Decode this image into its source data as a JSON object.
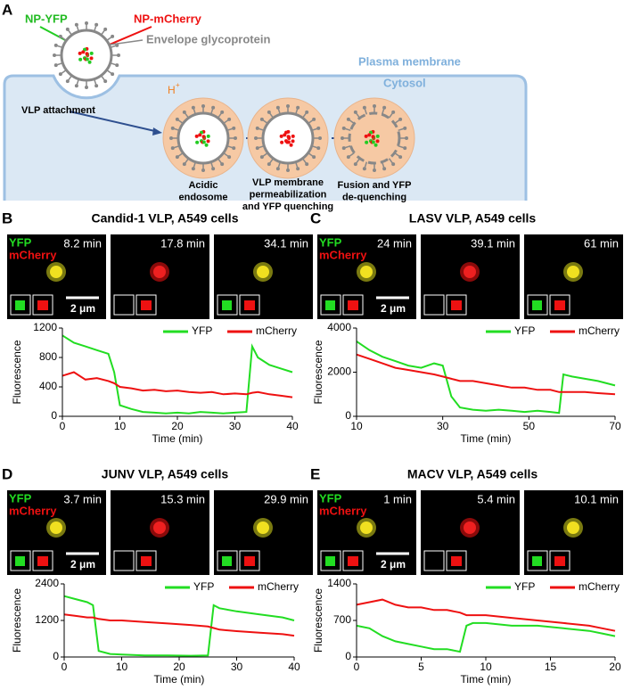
{
  "figure": {
    "panel_label": "A",
    "diagram": {
      "np_yfp": "NP-YFP",
      "np_mcherry": "NP-mCherry",
      "envelope": "Envelope glycoprotein",
      "plasma_membrane": "Plasma membrane",
      "cytosol": "Cytosol",
      "attachment": "VLP attachment",
      "proton": "H",
      "proton_sup": "+",
      "steps": [
        [
          "Acidic",
          "endosome"
        ],
        [
          "VLP membrane",
          "permeabilization",
          "and YFP quenching"
        ],
        [
          "Fusion and YFP",
          "de-quenching"
        ]
      ]
    }
  },
  "chart_data": [
    {
      "type": "line",
      "panel": "B",
      "title": "Candid-1 VLP, A549 cells",
      "image_times": [
        "8.2 min",
        "17.8 min",
        "34.1 min"
      ],
      "channels": [
        "YFP",
        "mCherry"
      ],
      "scale_bar": "2 μm",
      "xlabel": "Time (min)",
      "ylabel": "Fluorescence",
      "legend": "upper right",
      "x": [
        0,
        2,
        4,
        6,
        8,
        9,
        10,
        12,
        14,
        16,
        18,
        20,
        22,
        24,
        26,
        28,
        30,
        32,
        33,
        34,
        36,
        38,
        40
      ],
      "series": [
        {
          "name": "YFP",
          "color": "#22dd22",
          "values": [
            1100,
            1000,
            950,
            900,
            850,
            600,
            150,
            100,
            60,
            50,
            40,
            50,
            40,
            60,
            50,
            40,
            50,
            60,
            950,
            800,
            700,
            650,
            600
          ]
        },
        {
          "name": "mCherry",
          "color": "#ee1111",
          "values": [
            550,
            600,
            500,
            520,
            480,
            450,
            400,
            380,
            350,
            360,
            340,
            350,
            330,
            320,
            330,
            300,
            310,
            300,
            320,
            330,
            300,
            280,
            260
          ]
        }
      ],
      "xlim": [
        0,
        40
      ],
      "xticks": [
        0,
        10,
        20,
        30,
        40
      ],
      "ylim": [
        0,
        1200
      ],
      "yticks": [
        0,
        400,
        800,
        1200
      ]
    },
    {
      "type": "line",
      "panel": "C",
      "title": "LASV VLP, A549 cells",
      "image_times": [
        "24 min",
        "39.1 min",
        "61 min"
      ],
      "channels": [
        "YFP",
        "mCherry"
      ],
      "scale_bar": "2 μm",
      "xlabel": "Time (min)",
      "ylabel": "Fluorescence",
      "legend": "upper right",
      "x": [
        10,
        13,
        16,
        19,
        22,
        25,
        28,
        30,
        32,
        34,
        37,
        40,
        43,
        46,
        49,
        52,
        55,
        57,
        58,
        60,
        63,
        66,
        70
      ],
      "series": [
        {
          "name": "YFP",
          "color": "#22dd22",
          "values": [
            3400,
            3000,
            2700,
            2500,
            2300,
            2200,
            2400,
            2300,
            900,
            400,
            300,
            250,
            300,
            250,
            200,
            250,
            200,
            150,
            1900,
            1800,
            1700,
            1600,
            1400
          ]
        },
        {
          "name": "mCherry",
          "color": "#ee1111",
          "values": [
            2800,
            2600,
            2400,
            2200,
            2100,
            2000,
            1900,
            1800,
            1700,
            1600,
            1600,
            1500,
            1400,
            1300,
            1300,
            1200,
            1200,
            1100,
            1100,
            1100,
            1100,
            1050,
            1000
          ]
        }
      ],
      "xlim": [
        10,
        70
      ],
      "xticks": [
        10,
        30,
        50,
        70
      ],
      "ylim": [
        0,
        4000
      ],
      "yticks": [
        0,
        2000,
        4000
      ]
    },
    {
      "type": "line",
      "panel": "D",
      "title": "JUNV VLP, A549 cells",
      "image_times": [
        "3.7 min",
        "15.3 min",
        "29.9 min"
      ],
      "channels": [
        "YFP",
        "mCherry"
      ],
      "scale_bar": "2 μm",
      "xlabel": "Time (min)",
      "ylabel": "Fluorescence",
      "legend": "upper right",
      "x": [
        0,
        2,
        4,
        5,
        6,
        8,
        10,
        14,
        18,
        22,
        25,
        26,
        27,
        30,
        34,
        38,
        40
      ],
      "series": [
        {
          "name": "YFP",
          "color": "#22dd22",
          "values": [
            2000,
            1900,
            1800,
            1700,
            200,
            100,
            80,
            50,
            50,
            40,
            50,
            1700,
            1600,
            1500,
            1400,
            1300,
            1200
          ]
        },
        {
          "name": "mCherry",
          "color": "#ee1111",
          "values": [
            1400,
            1350,
            1300,
            1300,
            1250,
            1200,
            1200,
            1150,
            1100,
            1050,
            1000,
            950,
            900,
            850,
            800,
            750,
            700
          ]
        }
      ],
      "xlim": [
        0,
        40
      ],
      "xticks": [
        0,
        10,
        20,
        30,
        40
      ],
      "ylim": [
        0,
        2400
      ],
      "yticks": [
        0,
        1200,
        2400
      ]
    },
    {
      "type": "line",
      "panel": "E",
      "title": "MACV VLP, A549 cells",
      "image_times": [
        "1 min",
        "5.4 min",
        "10.1 min"
      ],
      "channels": [
        "YFP",
        "mCherry"
      ],
      "scale_bar": "2 μm",
      "xlabel": "Time (min)",
      "ylabel": "Fluorescence",
      "legend": "upper right",
      "x": [
        0,
        1,
        2,
        3,
        4,
        5,
        6,
        7,
        8,
        8.5,
        9,
        10,
        12,
        14,
        16,
        18,
        19,
        20
      ],
      "series": [
        {
          "name": "YFP",
          "color": "#22dd22",
          "values": [
            600,
            550,
            400,
            300,
            250,
            200,
            150,
            150,
            100,
            600,
            650,
            650,
            600,
            600,
            550,
            500,
            450,
            400
          ]
        },
        {
          "name": "mCherry",
          "color": "#ee1111",
          "values": [
            1000,
            1050,
            1100,
            1000,
            950,
            950,
            900,
            900,
            850,
            800,
            800,
            800,
            750,
            700,
            650,
            600,
            550,
            500
          ]
        }
      ],
      "xlim": [
        0,
        20
      ],
      "xticks": [
        0,
        5,
        10,
        15,
        20
      ],
      "ylim": [
        0,
        1400
      ],
      "yticks": [
        0,
        700,
        1400
      ]
    }
  ]
}
